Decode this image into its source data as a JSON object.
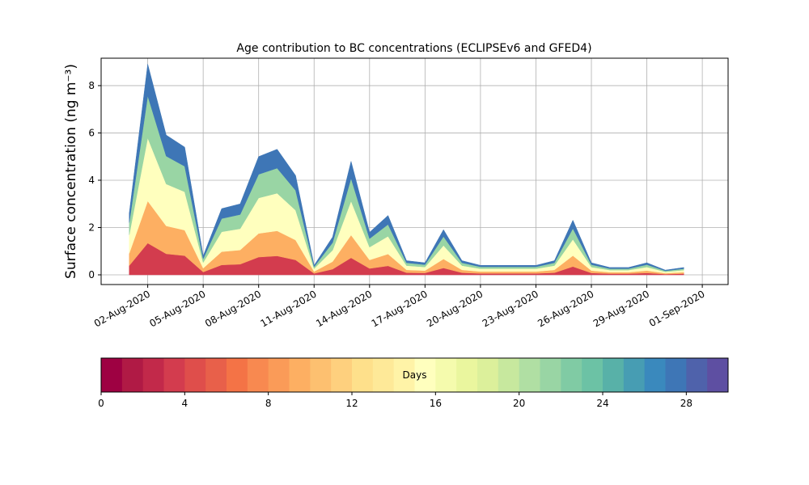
{
  "chart_data": {
    "type": "stacked_area",
    "title": "Age contribution to BC concentrations (ECLIPSEv6 and GFED4)",
    "y_label": "Surface concentration (ng m⁻³)",
    "x": [
      "2020-08-01",
      "2020-08-02",
      "2020-08-03",
      "2020-08-04",
      "2020-08-05",
      "2020-08-06",
      "2020-08-07",
      "2020-08-08",
      "2020-08-09",
      "2020-08-10",
      "2020-08-11",
      "2020-08-12",
      "2020-08-13",
      "2020-08-14",
      "2020-08-15",
      "2020-08-16",
      "2020-08-17",
      "2020-08-18",
      "2020-08-19",
      "2020-08-20",
      "2020-08-21",
      "2020-08-22",
      "2020-08-23",
      "2020-08-24",
      "2020-08-25",
      "2020-08-26",
      "2020-08-27",
      "2020-08-28",
      "2020-08-29",
      "2020-08-30",
      "2020-08-31"
    ],
    "series": [
      {
        "color": "#d33c4e",
        "values": [
          0.39,
          1.34,
          0.89,
          0.81,
          0.12,
          0.42,
          0.45,
          0.75,
          0.8,
          0.63,
          0.06,
          0.24,
          0.72,
          0.27,
          0.38,
          0.09,
          0.08,
          0.29,
          0.09,
          0.06,
          0.06,
          0.06,
          0.06,
          0.09,
          0.35,
          0.08,
          0.05,
          0.05,
          0.08,
          0.03,
          0.05
        ]
      },
      {
        "color": "#fdaf62",
        "values": [
          0.52,
          1.78,
          1.18,
          1.08,
          0.16,
          0.56,
          0.6,
          1,
          1.06,
          0.84,
          0.08,
          0.32,
          0.96,
          0.36,
          0.5,
          0.12,
          0.1,
          0.38,
          0.12,
          0.08,
          0.08,
          0.08,
          0.08,
          0.12,
          0.46,
          0.1,
          0.06,
          0.06,
          0.1,
          0.04,
          0.06
        ]
      },
      {
        "color": "#ffffbe",
        "values": [
          0.78,
          2.67,
          1.77,
          1.62,
          0.24,
          0.84,
          0.9,
          1.5,
          1.59,
          1.26,
          0.12,
          0.48,
          1.44,
          0.54,
          0.75,
          0.18,
          0.15,
          0.57,
          0.18,
          0.12,
          0.12,
          0.12,
          0.12,
          0.18,
          0.69,
          0.15,
          0.09,
          0.09,
          0.15,
          0.06,
          0.09
        ]
      },
      {
        "color": "#99d5a4",
        "values": [
          0.52,
          1.78,
          1.18,
          1.08,
          0.16,
          0.56,
          0.6,
          1,
          1.06,
          0.84,
          0.08,
          0.32,
          0.96,
          0.36,
          0.5,
          0.12,
          0.1,
          0.38,
          0.12,
          0.08,
          0.08,
          0.08,
          0.08,
          0.12,
          0.46,
          0.1,
          0.06,
          0.06,
          0.1,
          0.04,
          0.06
        ]
      },
      {
        "color": "#3e76b6",
        "values": [
          0.39,
          1.34,
          0.89,
          0.81,
          0.12,
          0.42,
          0.45,
          0.75,
          0.8,
          0.63,
          0.06,
          0.24,
          0.72,
          0.27,
          0.38,
          0.09,
          0.08,
          0.29,
          0.09,
          0.06,
          0.06,
          0.06,
          0.06,
          0.09,
          0.35,
          0.08,
          0.05,
          0.05,
          0.08,
          0.03,
          0.05
        ]
      }
    ],
    "xlim": [
      "2020-07-30T11:30:00Z",
      "2020-09-02T09:30:00Z"
    ],
    "xticks": [
      {
        "value": "2020-08-02",
        "label": "02-Aug-2020"
      },
      {
        "value": "2020-08-05",
        "label": "05-Aug-2020"
      },
      {
        "value": "2020-08-08",
        "label": "08-Aug-2020"
      },
      {
        "value": "2020-08-11",
        "label": "11-Aug-2020"
      },
      {
        "value": "2020-08-14",
        "label": "14-Aug-2020"
      },
      {
        "value": "2020-08-17",
        "label": "17-Aug-2020"
      },
      {
        "value": "2020-08-20",
        "label": "20-Aug-2020"
      },
      {
        "value": "2020-08-23",
        "label": "23-Aug-2020"
      },
      {
        "value": "2020-08-26",
        "label": "26-Aug-2020"
      },
      {
        "value": "2020-08-29",
        "label": "29-Aug-2020"
      },
      {
        "value": "2020-09-01",
        "label": "01-Sep-2020"
      }
    ],
    "ylim": [
      -0.41,
      9.16
    ],
    "yticks": [
      0,
      2,
      4,
      6,
      8
    ],
    "grid": true,
    "colorbar": {
      "label": "Days",
      "lim": [
        0,
        30
      ],
      "ticks": [
        0,
        4,
        8,
        12,
        16,
        20,
        24,
        28
      ],
      "colors": [
        "#9e0142",
        "#b01a45",
        "#c2294a",
        "#d33c4e",
        "#df4e4b",
        "#e8604a",
        "#f47346",
        "#f88950",
        "#fa9b58",
        "#fdaf62",
        "#fdc070",
        "#fed07e",
        "#fee08b",
        "#fee998",
        "#fff3a7",
        "#ffffbe",
        "#f5fbad",
        "#eaf69e",
        "#dcf09b",
        "#c7e89e",
        "#b0dfa3",
        "#99d5a4",
        "#80cba4",
        "#6cc2a5",
        "#58b1a8",
        "#479db3",
        "#3a89bd",
        "#3e76b6",
        "#4f62ab",
        "#5e4fa2"
      ]
    }
  }
}
